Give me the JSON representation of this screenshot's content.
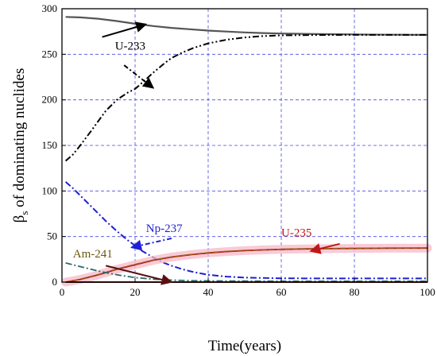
{
  "chart_data": {
    "type": "line",
    "xlabel": "Time(years)",
    "ylabel_main": "β",
    "ylabel_sub": "s",
    "ylabel_rest": " of dominating nuclides",
    "xlim": [
      0,
      100
    ],
    "ylim": [
      0,
      300
    ],
    "xticks": [
      0,
      20,
      40,
      60,
      80,
      100
    ],
    "yticks": [
      0,
      50,
      100,
      150,
      200,
      250,
      300
    ],
    "grid": true,
    "series": [
      {
        "key": "u233_total",
        "style": "solid",
        "color": "#555555",
        "x": [
          1,
          5,
          10,
          15,
          20,
          25,
          30,
          35,
          40,
          45,
          50,
          55,
          60,
          65,
          70,
          75,
          80,
          85,
          90,
          95,
          100
        ],
        "y": [
          291,
          290.5,
          289,
          286.5,
          283.5,
          281,
          279,
          277.5,
          276,
          275,
          274,
          273.3,
          272.8,
          272.5,
          272.2,
          272,
          271.8,
          271.6,
          271.5,
          271.4,
          271.3
        ]
      },
      {
        "key": "u233_growth",
        "style": "dashdotdot",
        "color": "#000000",
        "x": [
          1,
          3,
          5,
          8,
          10,
          12,
          15,
          18,
          20,
          22,
          25,
          28,
          30,
          33,
          36,
          40,
          45,
          50,
          55,
          60,
          70,
          80,
          90,
          100
        ],
        "y": [
          133,
          140,
          150,
          166,
          177,
          188,
          200,
          208,
          212,
          219,
          230,
          240,
          246,
          252,
          257,
          262,
          266,
          268.5,
          270,
          270.8,
          271.2,
          271.3,
          271.3,
          271.3
        ]
      },
      {
        "key": "np237",
        "style": "dashdot",
        "color": "#1f1fd6",
        "x": [
          1,
          3,
          5,
          8,
          10,
          12,
          15,
          18,
          20,
          22,
          25,
          28,
          30,
          33,
          36,
          40,
          45,
          50,
          55,
          60,
          70,
          80,
          90,
          100
        ],
        "y": [
          110,
          103,
          95,
          83,
          75,
          67,
          56,
          46,
          40,
          34,
          27,
          21,
          18,
          14,
          11,
          8,
          6,
          5,
          4.5,
          4.2,
          4,
          4,
          4,
          4
        ]
      },
      {
        "key": "u235",
        "style": "solid",
        "color": "#c01818",
        "x": [
          1,
          5,
          10,
          15,
          20,
          25,
          30,
          35,
          40,
          45,
          50,
          55,
          60,
          65,
          70,
          80,
          90,
          100
        ],
        "y": [
          0,
          3,
          8,
          14,
          19,
          24,
          27.5,
          30,
          32,
          33.5,
          34.5,
          35.3,
          35.9,
          36.3,
          36.6,
          37,
          37.2,
          37.3
        ]
      },
      {
        "key": "u235_dash",
        "style": "dash",
        "color": "#8a6a1c",
        "x": [
          1,
          5,
          10,
          15,
          20,
          25,
          30,
          35,
          40,
          45,
          50,
          55,
          60,
          65,
          70,
          80,
          90,
          100
        ],
        "y": [
          0,
          3.2,
          8.5,
          14.5,
          19.5,
          24.3,
          27.8,
          30.3,
          32.3,
          33.8,
          34.8,
          35.5,
          36.1,
          36.5,
          36.8,
          37.2,
          37.4,
          37.5
        ]
      },
      {
        "key": "am241",
        "style": "dashdot",
        "color": "#2a6a6a",
        "x": [
          1,
          5,
          10,
          15,
          20,
          25,
          30,
          35,
          40,
          50,
          60,
          70,
          80,
          90,
          100
        ],
        "y": [
          21,
          17,
          12,
          8,
          5,
          3.2,
          2.2,
          1.6,
          1.3,
          1.1,
          1,
          1,
          1,
          1,
          1
        ]
      },
      {
        "key": "baseline",
        "style": "solid",
        "color": "#6a1414",
        "x": [
          1,
          20,
          40,
          60,
          80,
          100
        ],
        "y": [
          0,
          0,
          0,
          0,
          0,
          0
        ]
      }
    ],
    "annotations": [
      {
        "text": "U-233",
        "color": "#000000",
        "label_at": [
          14.5,
          255
        ],
        "arrows": [
          {
            "from": [
              11,
              269
            ],
            "to": [
              23,
              283
            ]
          },
          {
            "from": [
              17,
              238
            ],
            "to": [
              25,
              213
            ]
          }
        ]
      },
      {
        "text": "Np-237",
        "color": "#1f1fd6",
        "label_at": [
          23,
          55
        ],
        "arrows": [
          {
            "from": [
              30,
              48
            ],
            "to": [
              19,
              38
            ]
          }
        ]
      },
      {
        "text": "Am-241",
        "color": "#6b5a10",
        "label_at": [
          3,
          27
        ],
        "arrows": [
          {
            "from": [
              12,
              18
            ],
            "to": [
              30,
              0
            ]
          }
        ]
      },
      {
        "text": "U-235",
        "color": "#c01818",
        "label_at": [
          60,
          50
        ],
        "arrows": [
          {
            "from": [
              76,
              42
            ],
            "to": [
              68,
              34
            ]
          }
        ]
      }
    ]
  }
}
